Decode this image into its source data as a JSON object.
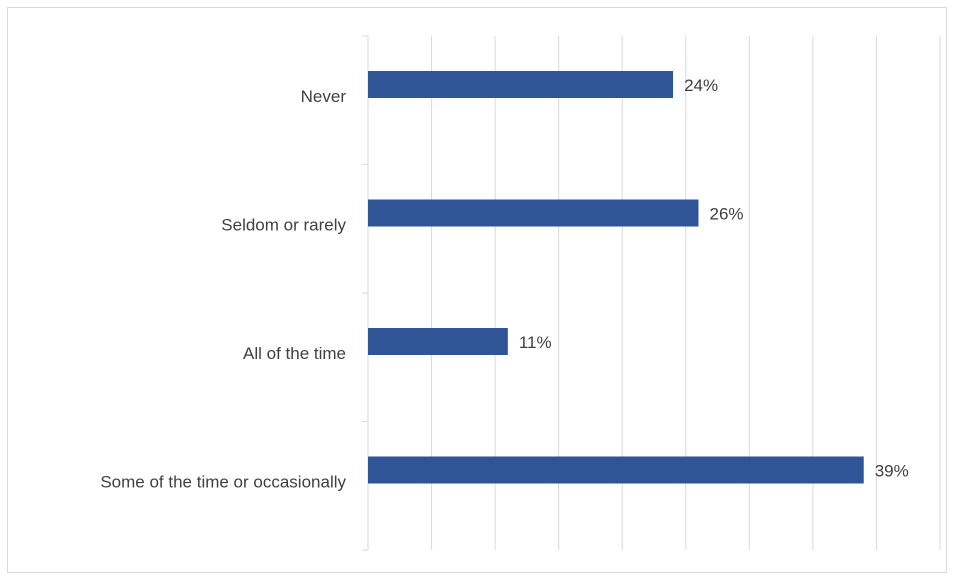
{
  "chart_data": {
    "type": "bar",
    "orientation": "horizontal",
    "categories": [
      "Never",
      "Seldom or rarely",
      "All of the time",
      "Some of the time or occasionally"
    ],
    "values": [
      24,
      26,
      11,
      39
    ],
    "value_labels": [
      "24%",
      "26%",
      "11%",
      "39%"
    ],
    "title": "",
    "xlabel": "",
    "ylabel": "",
    "xlim": [
      0,
      45
    ],
    "grid": true,
    "legend": "none",
    "bar_color": "#2F5597"
  }
}
